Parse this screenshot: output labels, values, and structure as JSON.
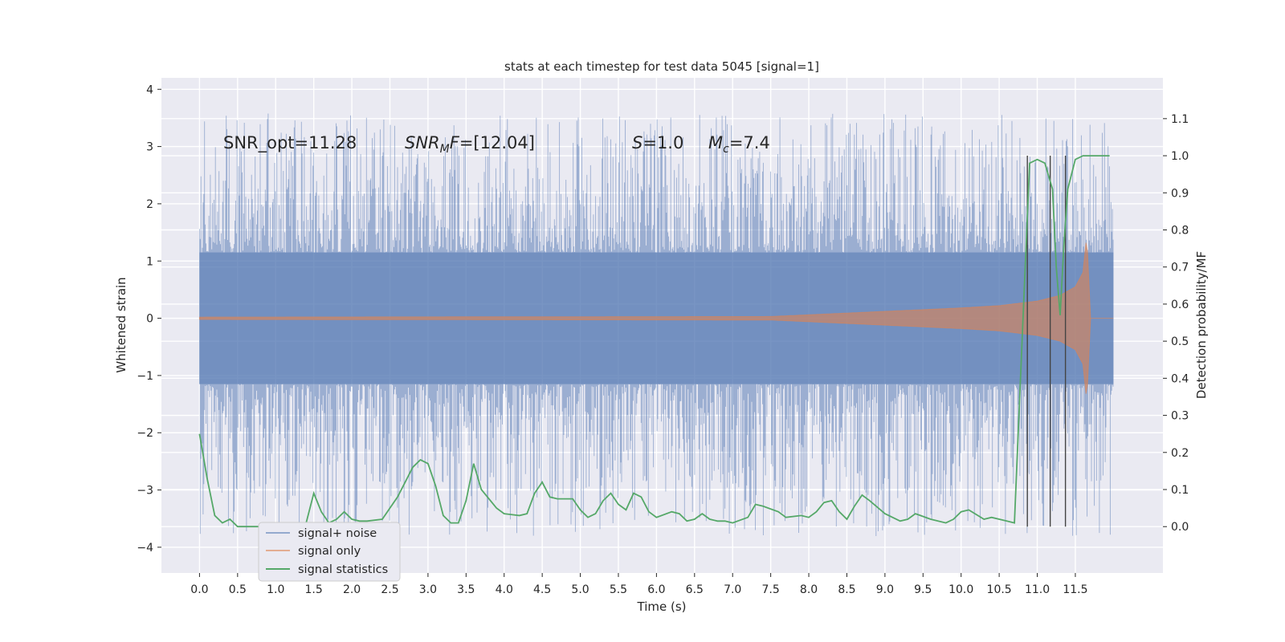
{
  "chart_data": {
    "type": "line",
    "title": "stats at each timestep for test data 5045 [signal=1]",
    "xlabel": "Time (s)",
    "ylabel": "Whitened strain",
    "ylabel_right": "Detection probability/MF",
    "xlim": [
      -0.5,
      12.65
    ],
    "ylim": [
      -4.45,
      4.2
    ],
    "ylim_right": [
      -0.125,
      1.21
    ],
    "x_ticks": [
      0.0,
      0.5,
      1.0,
      1.5,
      2.0,
      2.5,
      3.0,
      3.5,
      4.0,
      4.5,
      5.0,
      5.5,
      6.0,
      6.5,
      7.0,
      7.5,
      8.0,
      8.5,
      9.0,
      9.5,
      10.0,
      10.5,
      11.0,
      11.5
    ],
    "x_tick_labels": [
      "0.0",
      "0.5",
      "1.0",
      "1.5",
      "2.0",
      "2.5",
      "3.0",
      "3.5",
      "4.0",
      "4.5",
      "5.0",
      "5.5",
      "6.0",
      "6.5",
      "7.0",
      "7.5",
      "8.0",
      "8.5",
      "9.0",
      "9.5",
      "10.0",
      "10.5",
      "11.0",
      "11.5"
    ],
    "y_ticks": [
      -4,
      -3,
      -2,
      -1,
      0,
      1,
      2,
      3,
      4
    ],
    "y_tick_labels": [
      "−4",
      "−3",
      "−2",
      "−1",
      "0",
      "1",
      "2",
      "3",
      "4"
    ],
    "y_right_ticks": [
      0.0,
      0.1,
      0.2,
      0.3,
      0.4,
      0.5,
      0.6,
      0.7,
      0.8,
      0.9,
      1.0,
      1.1
    ],
    "y_right_tick_labels": [
      "0.0",
      "0.1",
      "0.2",
      "0.3",
      "0.4",
      "0.5",
      "0.6",
      "0.7",
      "0.8",
      "0.9",
      "1.0",
      "1.1"
    ],
    "grid": true,
    "legend_position": "lower-left",
    "annotations": [
      {
        "text": "SNR_opt=11.28",
        "x": 0.2,
        "y": 3.0
      },
      {
        "text": "SNR_MF=[12.04]",
        "x": 2.6,
        "y": 3.0
      },
      {
        "text": "S=1.0",
        "x": 5.6,
        "y": 3.0
      },
      {
        "text": "Mc=7.4",
        "x": 6.6,
        "y": 3.0
      }
    ],
    "series": [
      {
        "name": "signal+ noise",
        "color": "#4c72b0",
        "kind": "noise_band",
        "x_range": [
          0.0,
          12.0
        ],
        "core_amplitude": 1.15,
        "peak_min": -4.1,
        "peak_max": 3.85
      },
      {
        "name": "signal only",
        "color": "#dd8452",
        "kind": "chirp",
        "x": [
          0.0,
          7.5,
          8.0,
          9.0,
          10.0,
          10.5,
          11.0,
          11.3,
          11.5,
          11.6,
          11.65,
          11.7,
          12.0
        ],
        "envelope": [
          0.02,
          0.03,
          0.06,
          0.12,
          0.18,
          0.22,
          0.3,
          0.4,
          0.55,
          0.8,
          1.45,
          0.0,
          0.0
        ]
      },
      {
        "name": "signal statistics",
        "color": "#55a868",
        "axis": "right",
        "x": [
          0.0,
          0.1,
          0.2,
          0.3,
          0.4,
          0.5,
          0.6,
          0.8,
          1.0,
          1.2,
          1.4,
          1.5,
          1.6,
          1.7,
          1.8,
          1.9,
          2.0,
          2.1,
          2.2,
          2.4,
          2.5,
          2.6,
          2.7,
          2.8,
          2.9,
          3.0,
          3.1,
          3.2,
          3.3,
          3.4,
          3.5,
          3.6,
          3.7,
          3.9,
          4.0,
          4.2,
          4.3,
          4.4,
          4.5,
          4.6,
          4.7,
          4.9,
          5.0,
          5.1,
          5.2,
          5.3,
          5.4,
          5.5,
          5.6,
          5.7,
          5.8,
          5.9,
          6.0,
          6.2,
          6.3,
          6.4,
          6.5,
          6.6,
          6.7,
          6.8,
          6.9,
          7.0,
          7.2,
          7.3,
          7.4,
          7.6,
          7.7,
          7.9,
          8.0,
          8.1,
          8.2,
          8.3,
          8.4,
          8.5,
          8.6,
          8.7,
          8.8,
          9.0,
          9.2,
          9.3,
          9.4,
          9.6,
          9.8,
          9.9,
          10.0,
          10.1,
          10.3,
          10.4,
          10.6,
          10.7,
          10.8,
          10.9,
          11.0,
          11.1,
          11.2,
          11.25,
          11.3,
          11.35,
          11.4,
          11.5,
          11.6,
          11.8,
          11.95
        ],
        "values": [
          0.25,
          0.13,
          0.03,
          0.01,
          0.02,
          0.0,
          0.0,
          0.0,
          0.0,
          0.0,
          0.01,
          0.09,
          0.04,
          0.01,
          0.02,
          0.04,
          0.02,
          0.015,
          0.015,
          0.02,
          0.05,
          0.08,
          0.12,
          0.16,
          0.18,
          0.17,
          0.11,
          0.03,
          0.01,
          0.01,
          0.07,
          0.17,
          0.1,
          0.05,
          0.035,
          0.03,
          0.035,
          0.09,
          0.12,
          0.08,
          0.075,
          0.075,
          0.045,
          0.025,
          0.035,
          0.07,
          0.09,
          0.06,
          0.045,
          0.09,
          0.08,
          0.04,
          0.025,
          0.04,
          0.035,
          0.015,
          0.02,
          0.035,
          0.02,
          0.015,
          0.015,
          0.01,
          0.025,
          0.06,
          0.055,
          0.04,
          0.025,
          0.03,
          0.025,
          0.04,
          0.065,
          0.07,
          0.04,
          0.02,
          0.055,
          0.085,
          0.07,
          0.035,
          0.015,
          0.02,
          0.035,
          0.02,
          0.01,
          0.02,
          0.04,
          0.045,
          0.02,
          0.025,
          0.015,
          0.01,
          0.5,
          0.98,
          0.99,
          0.98,
          0.91,
          0.7,
          0.57,
          0.76,
          0.91,
          0.99,
          1.0,
          1.0,
          1.0
        ]
      }
    ],
    "vertical_lines": [
      10.87,
      11.17,
      11.37
    ]
  }
}
